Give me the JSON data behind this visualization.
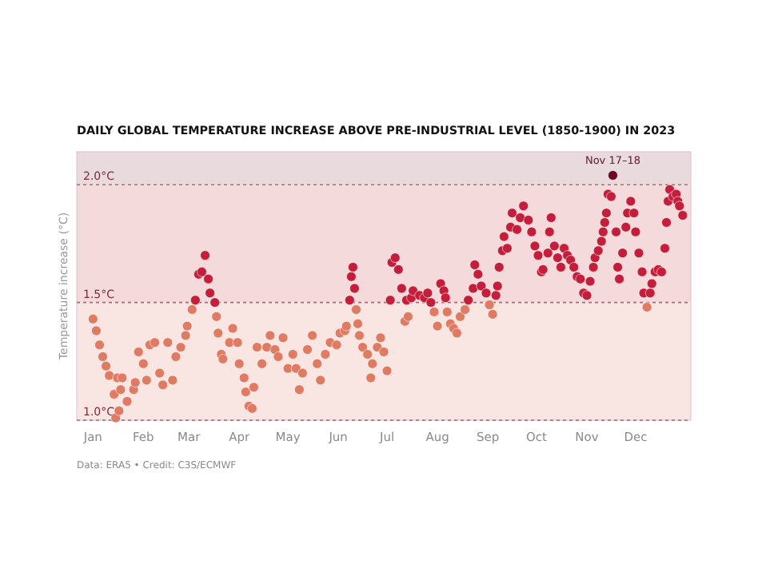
{
  "chart_data": {
    "type": "scatter",
    "title": "DAILY GLOBAL TEMPERATURE INCREASE ABOVE PRE-INDUSTRIAL LEVEL (1850-1900) IN 2023",
    "ylabel": "Temperature increase (°C)",
    "annotations": [
      {
        "text": "Nov 17–18",
        "x": "2023-11-17",
        "y": 2.04
      },
      "Data: ERA5 • Credit: C3S/ECMWF"
    ],
    "xlim": [
      "2022-12-22",
      "2024-01-04"
    ],
    "xticks": [
      {
        "value": "2023-01-01",
        "label": "Jan"
      },
      {
        "value": "2023-02-01",
        "label": "Feb"
      },
      {
        "value": "2023-03-01",
        "label": "Mar"
      },
      {
        "value": "2023-04-01",
        "label": "Apr"
      },
      {
        "value": "2023-05-01",
        "label": "May"
      },
      {
        "value": "2023-06-01",
        "label": "Jun"
      },
      {
        "value": "2023-07-01",
        "label": "Jul"
      },
      {
        "value": "2023-08-01",
        "label": "Aug"
      },
      {
        "value": "2023-09-01",
        "label": "Sep"
      },
      {
        "value": "2023-10-01",
        "label": "Oct"
      },
      {
        "value": "2023-11-01",
        "label": "Nov"
      },
      {
        "value": "2023-12-01",
        "label": "Dec"
      }
    ],
    "ylim": [
      1.0,
      2.14
    ],
    "yticks": [
      {
        "value": 1,
        "label": "1.0°C"
      },
      {
        "value": 1.5,
        "label": "1.5°C"
      },
      {
        "value": 2,
        "label": "2.0°C"
      }
    ],
    "grid": "y",
    "marker": "circle",
    "bands": [
      {
        "axis": "y",
        "from": 1.0,
        "to": 1.5,
        "color": "#f9e6e3"
      },
      {
        "axis": "y",
        "from": 1.5,
        "to": 2.0,
        "color": "#f4dadb"
      },
      {
        "axis": "y",
        "from": 2.0,
        "to": 2.14,
        "color": "#e9dadd"
      }
    ],
    "series": [
      {
        "color": "#df7b63",
        "x": [
          "2023-01-01",
          "2023-01-03",
          "2023-01-05",
          "2023-01-07",
          "2023-01-09",
          "2023-01-11",
          "2023-01-14",
          "2023-01-15",
          "2023-01-16",
          "2023-01-17",
          "2023-01-18",
          "2023-01-19",
          "2023-01-22",
          "2023-01-26",
          "2023-01-27",
          "2023-01-29",
          "2023-02-01",
          "2023-02-03",
          "2023-02-05",
          "2023-02-08",
          "2023-02-11",
          "2023-02-13",
          "2023-02-16",
          "2023-02-19",
          "2023-02-21",
          "2023-02-24",
          "2023-02-27",
          "2023-02-28",
          "2023-03-03",
          "2023-03-18",
          "2023-03-19",
          "2023-03-21",
          "2023-03-22",
          "2023-03-26",
          "2023-03-28",
          "2023-03-31",
          "2023-04-01",
          "2023-04-04",
          "2023-04-05",
          "2023-04-07",
          "2023-04-09",
          "2023-04-10",
          "2023-04-12",
          "2023-04-15",
          "2023-04-18",
          "2023-04-20",
          "2023-04-23",
          "2023-04-25",
          "2023-04-28",
          "2023-05-01",
          "2023-05-04",
          "2023-05-06",
          "2023-05-08",
          "2023-05-10",
          "2023-05-13",
          "2023-05-16",
          "2023-05-19",
          "2023-05-21",
          "2023-05-24",
          "2023-05-27",
          "2023-05-31",
          "2023-06-02",
          "2023-06-05",
          "2023-06-06",
          "2023-06-12",
          "2023-06-13",
          "2023-06-14",
          "2023-06-16",
          "2023-06-19",
          "2023-06-21",
          "2023-06-22",
          "2023-06-25",
          "2023-06-27",
          "2023-06-29",
          "2023-07-01",
          "2023-07-12",
          "2023-07-14",
          "2023-07-30",
          "2023-08-01",
          "2023-08-07",
          "2023-08-09",
          "2023-08-11",
          "2023-08-13",
          "2023-08-15",
          "2023-08-18",
          "2023-09-02",
          "2023-09-04",
          "2023-12-08"
        ],
        "values": [
          1.43,
          1.38,
          1.32,
          1.27,
          1.23,
          1.19,
          1.11,
          1.01,
          1.18,
          1.04,
          1.13,
          1.18,
          1.08,
          1.13,
          1.16,
          1.29,
          1.24,
          1.17,
          1.32,
          1.33,
          1.2,
          1.15,
          1.33,
          1.17,
          1.27,
          1.31,
          1.36,
          1.4,
          1.47,
          1.44,
          1.37,
          1.28,
          1.26,
          1.33,
          1.39,
          1.33,
          1.24,
          1.18,
          1.12,
          1.06,
          1.05,
          1.14,
          1.31,
          1.24,
          1.31,
          1.36,
          1.3,
          1.27,
          1.35,
          1.22,
          1.28,
          1.22,
          1.13,
          1.2,
          1.3,
          1.36,
          1.24,
          1.17,
          1.28,
          1.33,
          1.32,
          1.37,
          1.38,
          1.4,
          1.47,
          1.41,
          1.36,
          1.31,
          1.28,
          1.18,
          1.24,
          1.31,
          1.35,
          1.29,
          1.21,
          1.42,
          1.44,
          1.46,
          1.4,
          1.46,
          1.41,
          1.39,
          1.37,
          1.44,
          1.47,
          1.49,
          1.45,
          1.48
        ]
      },
      {
        "color": "#c41e3a",
        "x": [
          "2023-03-05",
          "2023-03-07",
          "2023-03-09",
          "2023-03-11",
          "2023-03-13",
          "2023-03-14",
          "2023-03-17",
          "2023-06-08",
          "2023-06-09",
          "2023-06-10",
          "2023-06-11",
          "2023-07-03",
          "2023-07-04",
          "2023-07-06",
          "2023-07-08",
          "2023-07-10",
          "2023-07-13",
          "2023-07-16",
          "2023-07-17",
          "2023-07-21",
          "2023-07-24",
          "2023-07-26",
          "2023-07-28",
          "2023-08-03",
          "2023-08-05",
          "2023-08-06",
          "2023-08-20",
          "2023-08-23",
          "2023-08-24",
          "2023-08-26",
          "2023-08-28",
          "2023-08-31",
          "2023-09-06",
          "2023-09-07",
          "2023-09-08",
          "2023-09-10",
          "2023-09-11",
          "2023-09-13",
          "2023-09-15",
          "2023-09-16",
          "2023-09-19",
          "2023-09-21",
          "2023-09-23",
          "2023-09-26",
          "2023-09-28",
          "2023-09-30",
          "2023-10-02",
          "2023-10-04",
          "2023-10-05",
          "2023-10-08",
          "2023-10-09",
          "2023-10-10",
          "2023-10-12",
          "2023-10-14",
          "2023-10-16",
          "2023-10-18",
          "2023-10-20",
          "2023-10-22",
          "2023-10-24",
          "2023-10-26",
          "2023-10-28",
          "2023-10-30",
          "2023-11-01",
          "2023-11-03",
          "2023-11-05",
          "2023-11-06",
          "2023-11-08",
          "2023-11-10",
          "2023-11-11",
          "2023-11-12",
          "2023-11-13",
          "2023-11-14",
          "2023-11-16",
          "2023-11-19",
          "2023-11-20",
          "2023-11-21",
          "2023-11-23",
          "2023-11-25",
          "2023-11-26",
          "2023-11-28",
          "2023-11-30",
          "2023-12-01",
          "2023-12-03",
          "2023-12-05",
          "2023-12-06",
          "2023-12-10",
          "2023-12-11",
          "2023-12-13",
          "2023-12-15",
          "2023-12-17",
          "2023-12-19",
          "2023-12-20",
          "2023-12-21",
          "2023-12-22",
          "2023-12-24",
          "2023-12-26",
          "2023-12-27",
          "2023-12-28",
          "2023-12-30"
        ],
        "values": [
          1.51,
          1.62,
          1.63,
          1.7,
          1.6,
          1.54,
          1.5,
          1.51,
          1.61,
          1.65,
          1.56,
          1.51,
          1.67,
          1.69,
          1.64,
          1.56,
          1.51,
          1.52,
          1.55,
          1.53,
          1.52,
          1.54,
          1.5,
          1.58,
          1.55,
          1.52,
          1.51,
          1.56,
          1.66,
          1.62,
          1.57,
          1.54,
          1.53,
          1.57,
          1.65,
          1.72,
          1.78,
          1.73,
          1.82,
          1.88,
          1.81,
          1.86,
          1.91,
          1.85,
          1.8,
          1.74,
          1.7,
          1.63,
          1.64,
          1.71,
          1.8,
          1.86,
          1.74,
          1.69,
          1.65,
          1.73,
          1.7,
          1.68,
          1.65,
          1.61,
          1.6,
          1.54,
          1.53,
          1.59,
          1.65,
          1.69,
          1.72,
          1.76,
          1.8,
          1.84,
          1.88,
          1.96,
          1.95,
          1.8,
          1.65,
          1.6,
          1.71,
          1.82,
          1.88,
          1.93,
          1.88,
          1.8,
          1.71,
          1.63,
          1.54,
          1.54,
          1.58,
          1.63,
          1.64,
          1.63,
          1.73,
          1.84,
          1.93,
          1.98,
          1.95,
          1.96,
          1.93,
          1.91,
          1.87
        ]
      },
      {
        "color": "#6b0a1e",
        "x": [
          "2023-11-17"
        ],
        "values": [
          2.04
        ]
      }
    ]
  }
}
